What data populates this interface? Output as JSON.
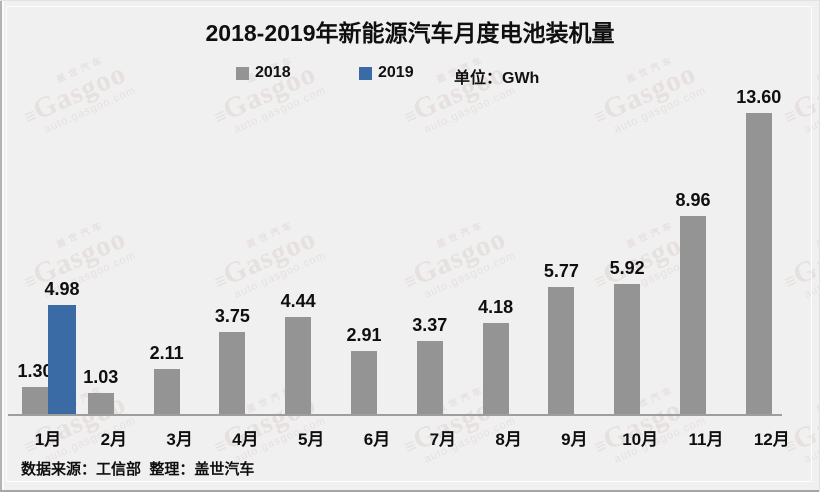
{
  "title": "2018-2019年新能源汽车月度电池装机量",
  "legend": {
    "unit_label": "单位：GWh"
  },
  "chart_data": {
    "type": "bar",
    "title": "2018-2019年新能源汽车月度电池装机量",
    "unit": "GWh",
    "categories": [
      "1月",
      "2月",
      "3月",
      "4月",
      "5月",
      "6月",
      "7月",
      "8月",
      "9月",
      "10月",
      "11月",
      "12月"
    ],
    "series": [
      {
        "name": "2018",
        "color": "#949494",
        "values": [
          1.3,
          1.03,
          2.11,
          3.75,
          4.44,
          2.91,
          3.37,
          4.18,
          5.77,
          5.92,
          8.96,
          13.6
        ]
      },
      {
        "name": "2019",
        "color": "#3a6ba4",
        "values": [
          4.98,
          null,
          null,
          null,
          null,
          null,
          null,
          null,
          null,
          null,
          null,
          null
        ]
      }
    ],
    "value_label_format": "0.00",
    "ylim": [
      0,
      14
    ],
    "grid": false,
    "legend_position": "top"
  },
  "footer": {
    "text": "数据来源：工信部  整理：盖世汽车"
  },
  "watermark": {
    "cn": "盖世汽车",
    "logo": "Gasgoo",
    "url": "auto.gasgoo.com"
  },
  "colors": {
    "background": "#f1f0f0",
    "axis": "#9e9e9e",
    "bar_2018": "#949494",
    "bar_2019": "#3a6ba4"
  }
}
